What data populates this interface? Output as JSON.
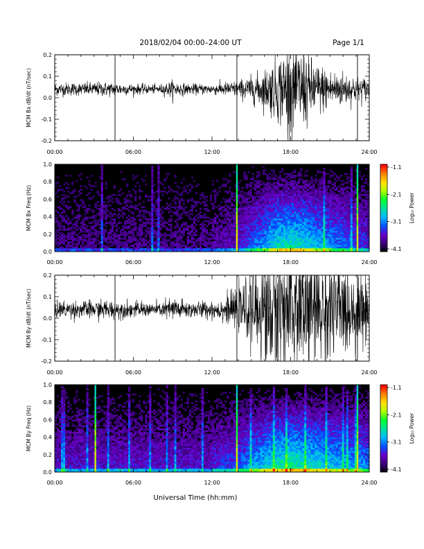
{
  "header": {
    "title": "2018/02/04  00:00–24:00 UT",
    "page": "Page 1/1"
  },
  "footer": {
    "xlabel": "Universal Time (hh:mm)"
  },
  "colorbar": {
    "label": "Log₁₀ Power",
    "ticks": [
      "-1.1",
      "-2.1",
      "-3.1",
      "-4.1"
    ],
    "range": [
      -4.1,
      -1.1
    ],
    "colormap": [
      "#000000",
      "#3a007a",
      "#6a00c8",
      "#0050ff",
      "#00b8ff",
      "#00e0a0",
      "#00ff30",
      "#b0ff00",
      "#ffe000",
      "#ff8000",
      "#ff0000"
    ]
  },
  "chart_data": [
    {
      "type": "line",
      "ylabel": "MCM Bx dB/dt (nT/sec)",
      "xlim": [
        "00:00",
        "24:00"
      ],
      "ylim": [
        -0.2,
        0.2
      ],
      "xticks": [
        "00:00",
        "06:00",
        "12:00",
        "18:00",
        "24:00"
      ],
      "yticks": [
        "0.2",
        "0.1",
        "0.0",
        "-0.1",
        "-0.2"
      ],
      "baseline": 0.04,
      "spikes_hours": [
        4.6,
        13.9,
        23.1
      ],
      "activity_profile": {
        "hours": [
          0,
          2,
          4,
          6,
          8,
          9,
          10,
          12,
          13,
          14,
          15,
          16,
          17,
          18,
          19,
          20,
          21,
          22,
          23,
          24
        ],
        "amplitude": [
          0.015,
          0.015,
          0.017,
          0.012,
          0.01,
          0.02,
          0.012,
          0.012,
          0.016,
          0.02,
          0.03,
          0.045,
          0.075,
          0.11,
          0.09,
          0.06,
          0.045,
          0.04,
          0.03,
          0.025
        ]
      }
    },
    {
      "type": "heatmap",
      "ylabel": "MCM Bx Freq (Hz)",
      "xlim": [
        "00:00",
        "24:00"
      ],
      "ylim": [
        0.0,
        1.0
      ],
      "xticks": [
        "00:00",
        "06:00",
        "12:00",
        "18:00",
        "24:00"
      ],
      "yticks": [
        "1.0",
        "0.8",
        "0.6",
        "0.4",
        "0.2",
        "0.0"
      ],
      "z_units": "Log10 Power",
      "bright_columns_hours": [
        13.9,
        23.1
      ]
    },
    {
      "type": "line",
      "ylabel": "MCM By dB/dt (nT/sec)",
      "xlim": [
        "00:00",
        "24:00"
      ],
      "ylim": [
        -0.2,
        0.2
      ],
      "xticks": [
        "00:00",
        "06:00",
        "12:00",
        "18:00",
        "24:00"
      ],
      "yticks": [
        "0.2",
        "0.1",
        "0.0",
        "-0.1",
        "-0.2"
      ],
      "baseline": 0.04,
      "spikes_hours": [
        4.6,
        13.9,
        23.1
      ],
      "activity_profile": {
        "hours": [
          0,
          2,
          4,
          6,
          8,
          9,
          10,
          12,
          13,
          14,
          15,
          16,
          17,
          18,
          19,
          20,
          21,
          22,
          23,
          24
        ],
        "amplitude": [
          0.02,
          0.02,
          0.022,
          0.018,
          0.015,
          0.03,
          0.02,
          0.02,
          0.03,
          0.045,
          0.08,
          0.14,
          0.17,
          0.18,
          0.16,
          0.14,
          0.13,
          0.11,
          0.09,
          0.07
        ]
      }
    },
    {
      "type": "heatmap",
      "ylabel": "MCM By Freq (Hz)",
      "xlim": [
        "00:00",
        "24:00"
      ],
      "ylim": [
        0.0,
        1.0
      ],
      "xticks": [
        "00:00",
        "06:00",
        "12:00",
        "18:00",
        "24:00"
      ],
      "yticks": [
        "1.0",
        "0.8",
        "0.6",
        "0.4",
        "0.2",
        "0.0"
      ],
      "z_units": "Log10 Power",
      "bright_columns_hours": [
        3.1,
        13.9,
        23.1
      ]
    }
  ]
}
